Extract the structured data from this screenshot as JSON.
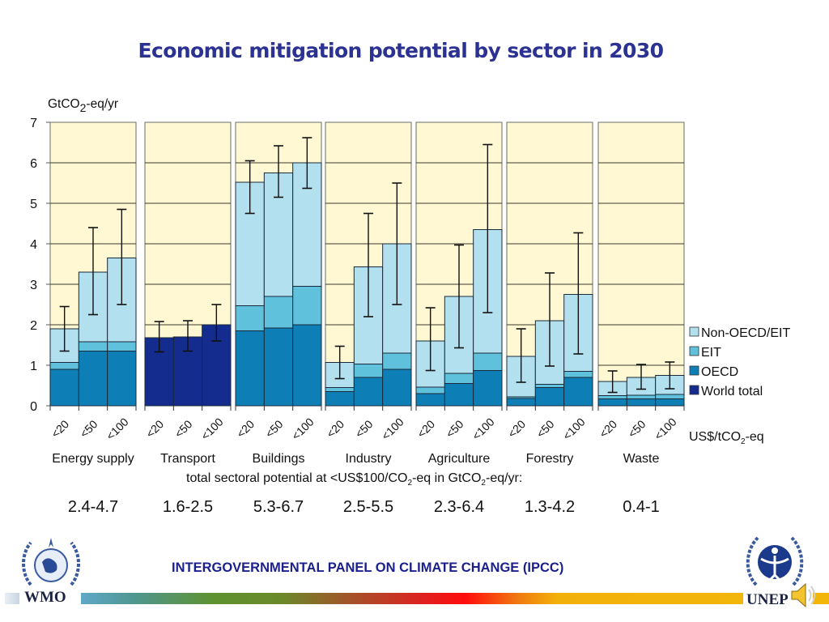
{
  "slide": {
    "title": "Economic mitigation potential by sector in 2030",
    "footer": "INTERGOVERNMENTAL PANEL ON CLIMATE CHANGE (IPCC)",
    "logos": {
      "left": "WMO",
      "right": "UNEP"
    },
    "icons": [
      "wmo-emblem-icon",
      "unep-emblem-icon",
      "speaker-icon"
    ]
  },
  "colors": {
    "title": "#2b3291",
    "panel_bg": "#fff8d2",
    "non_oecd_eit": "#b2e0ee",
    "eit": "#5fc1dc",
    "oecd": "#0e7fb6",
    "world_total": "#142c8e",
    "footer_text": "#1a1f8c"
  },
  "chart_data": {
    "type": "bar",
    "subtype": "stacked-bar-with-error-bars",
    "title": "Economic mitigation potential by sector in 2030",
    "ylabel": "GtCO2-eq/yr",
    "ylabel_main": "GtCO",
    "ylabel_sub": "2",
    "ylabel_tail": "-eq/yr",
    "xlabel": "US$/tCO2-eq",
    "xlabel_main": "US$/tCO",
    "xlabel_sub": "2",
    "xlabel_tail": "-eq",
    "ylim": [
      0,
      7
    ],
    "yticks": [
      0,
      1,
      2,
      3,
      4,
      5,
      6,
      7
    ],
    "grid": true,
    "legend_position": "right",
    "legend": [
      {
        "key": "non_oecd_eit",
        "label": "Non-OECD/EIT"
      },
      {
        "key": "eit",
        "label": "EIT"
      },
      {
        "key": "oecd",
        "label": "OECD"
      },
      {
        "key": "world_total",
        "label": "World total"
      }
    ],
    "price_categories": [
      "<20",
      "<50",
      "<100"
    ],
    "total_caption": {
      "prefix": "total sectoral potential at <US$100/CO",
      "sub1": "2",
      "middle": "-eq in GtCO",
      "sub2": "2",
      "suffix": "-eq/yr:"
    },
    "sectors": [
      {
        "name": "Energy supply",
        "total_range": "2.4-4.7",
        "bars": [
          {
            "price": "<20",
            "oecd": 0.9,
            "eit": 0.17,
            "non_oecd_eit": 0.83,
            "err": [
              1.35,
              2.45
            ]
          },
          {
            "price": "<50",
            "oecd": 1.35,
            "eit": 0.23,
            "non_oecd_eit": 1.72,
            "err": [
              2.25,
              4.4
            ]
          },
          {
            "price": "<100",
            "oecd": 1.35,
            "eit": 0.23,
            "non_oecd_eit": 2.07,
            "err": [
              2.5,
              4.85
            ]
          }
        ]
      },
      {
        "name": "Transport",
        "total_range": "1.6-2.5",
        "bars": [
          {
            "price": "<20",
            "world_total": 1.68,
            "err": [
              1.33,
              2.08
            ]
          },
          {
            "price": "<50",
            "world_total": 1.7,
            "err": [
              1.35,
              2.1
            ]
          },
          {
            "price": "<100",
            "world_total": 2.0,
            "err": [
              1.6,
              2.5
            ]
          }
        ]
      },
      {
        "name": "Buildings",
        "total_range": "5.3-6.7",
        "bars": [
          {
            "price": "<20",
            "oecd": 1.85,
            "eit": 0.62,
            "non_oecd_eit": 3.05,
            "err": [
              4.75,
              6.05
            ]
          },
          {
            "price": "<50",
            "oecd": 1.92,
            "eit": 0.78,
            "non_oecd_eit": 3.05,
            "err": [
              5.15,
              6.42
            ]
          },
          {
            "price": "<100",
            "oecd": 2.0,
            "eit": 0.95,
            "non_oecd_eit": 3.05,
            "err": [
              5.37,
              6.62
            ]
          }
        ]
      },
      {
        "name": "Industry",
        "total_range": "2.5-5.5",
        "bars": [
          {
            "price": "<20",
            "oecd": 0.35,
            "eit": 0.1,
            "non_oecd_eit": 0.62,
            "err": [
              0.67,
              1.47
            ]
          },
          {
            "price": "<50",
            "oecd": 0.7,
            "eit": 0.33,
            "non_oecd_eit": 2.4,
            "err": [
              2.2,
              4.75
            ]
          },
          {
            "price": "<100",
            "oecd": 0.9,
            "eit": 0.4,
            "non_oecd_eit": 2.7,
            "err": [
              2.5,
              5.5
            ]
          }
        ]
      },
      {
        "name": "Agriculture",
        "total_range": "2.3-6.4",
        "bars": [
          {
            "price": "<20",
            "oecd": 0.3,
            "eit": 0.16,
            "non_oecd_eit": 1.14,
            "err": [
              0.87,
              2.42
            ]
          },
          {
            "price": "<50",
            "oecd": 0.55,
            "eit": 0.25,
            "non_oecd_eit": 1.9,
            "err": [
              1.43,
              3.97
            ]
          },
          {
            "price": "<100",
            "oecd": 0.87,
            "eit": 0.43,
            "non_oecd_eit": 3.05,
            "err": [
              2.3,
              6.45
            ]
          }
        ]
      },
      {
        "name": "Forestry",
        "total_range": "1.3-4.2",
        "bars": [
          {
            "price": "<20",
            "oecd": 0.18,
            "eit": 0.04,
            "non_oecd_eit": 1.0,
            "err": [
              0.58,
              1.9
            ]
          },
          {
            "price": "<50",
            "oecd": 0.45,
            "eit": 0.08,
            "non_oecd_eit": 1.57,
            "err": [
              0.98,
              3.28
            ]
          },
          {
            "price": "<100",
            "oecd": 0.7,
            "eit": 0.15,
            "non_oecd_eit": 1.9,
            "err": [
              1.28,
              4.27
            ]
          }
        ]
      },
      {
        "name": "Waste",
        "total_range": "0.4-1",
        "bars": [
          {
            "price": "<20",
            "oecd": 0.17,
            "eit": 0.08,
            "non_oecd_eit": 0.35,
            "err": [
              0.33,
              0.86
            ]
          },
          {
            "price": "<50",
            "oecd": 0.17,
            "eit": 0.09,
            "non_oecd_eit": 0.44,
            "err": [
              0.41,
              1.02
            ]
          },
          {
            "price": "<100",
            "oecd": 0.17,
            "eit": 0.11,
            "non_oecd_eit": 0.47,
            "err": [
              0.42,
              1.08
            ]
          }
        ]
      }
    ]
  }
}
